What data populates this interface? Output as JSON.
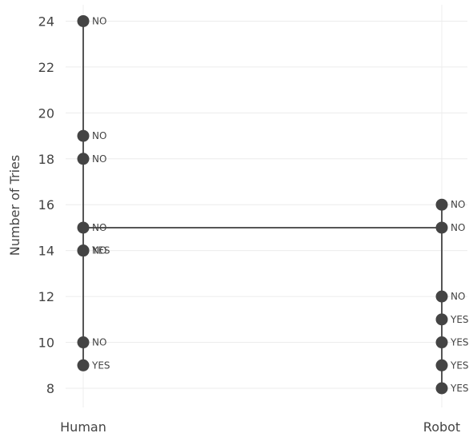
{
  "chart_data": {
    "type": "scatter",
    "ylabel": "Number of Tries",
    "xlabel": "",
    "categories": [
      "Human",
      "Robot"
    ],
    "ylim": [
      7,
      24.8
    ],
    "yticks": [
      8,
      10,
      12,
      14,
      16,
      18,
      20,
      22,
      24
    ],
    "grid": true,
    "marker_color": "#444444",
    "line_color": "#555555",
    "points": [
      {
        "category": "Human",
        "y": 24,
        "label": "NO"
      },
      {
        "category": "Human",
        "y": 19,
        "label": "NO"
      },
      {
        "category": "Human",
        "y": 18,
        "label": "NO"
      },
      {
        "category": "Human",
        "y": 15,
        "label": "NO"
      },
      {
        "category": "Human",
        "y": 14,
        "label": "YES"
      },
      {
        "category": "Human",
        "y": 14,
        "label": "NO"
      },
      {
        "category": "Human",
        "y": 10,
        "label": "NO"
      },
      {
        "category": "Human",
        "y": 9,
        "label": "YES"
      },
      {
        "category": "Robot",
        "y": 16,
        "label": "NO"
      },
      {
        "category": "Robot",
        "y": 15,
        "label": "NO"
      },
      {
        "category": "Robot",
        "y": 12,
        "label": "NO"
      },
      {
        "category": "Robot",
        "y": 11,
        "label": "YES"
      },
      {
        "category": "Robot",
        "y": 10,
        "label": "YES"
      },
      {
        "category": "Robot",
        "y": 9,
        "label": "YES"
      },
      {
        "category": "Robot",
        "y": 8,
        "label": "YES"
      }
    ],
    "ranges": [
      {
        "category": "Human",
        "min": 9,
        "max": 24
      },
      {
        "category": "Robot",
        "min": 8,
        "max": 16
      }
    ],
    "connector": {
      "from": "Human",
      "to": "Robot",
      "y": 15
    }
  }
}
